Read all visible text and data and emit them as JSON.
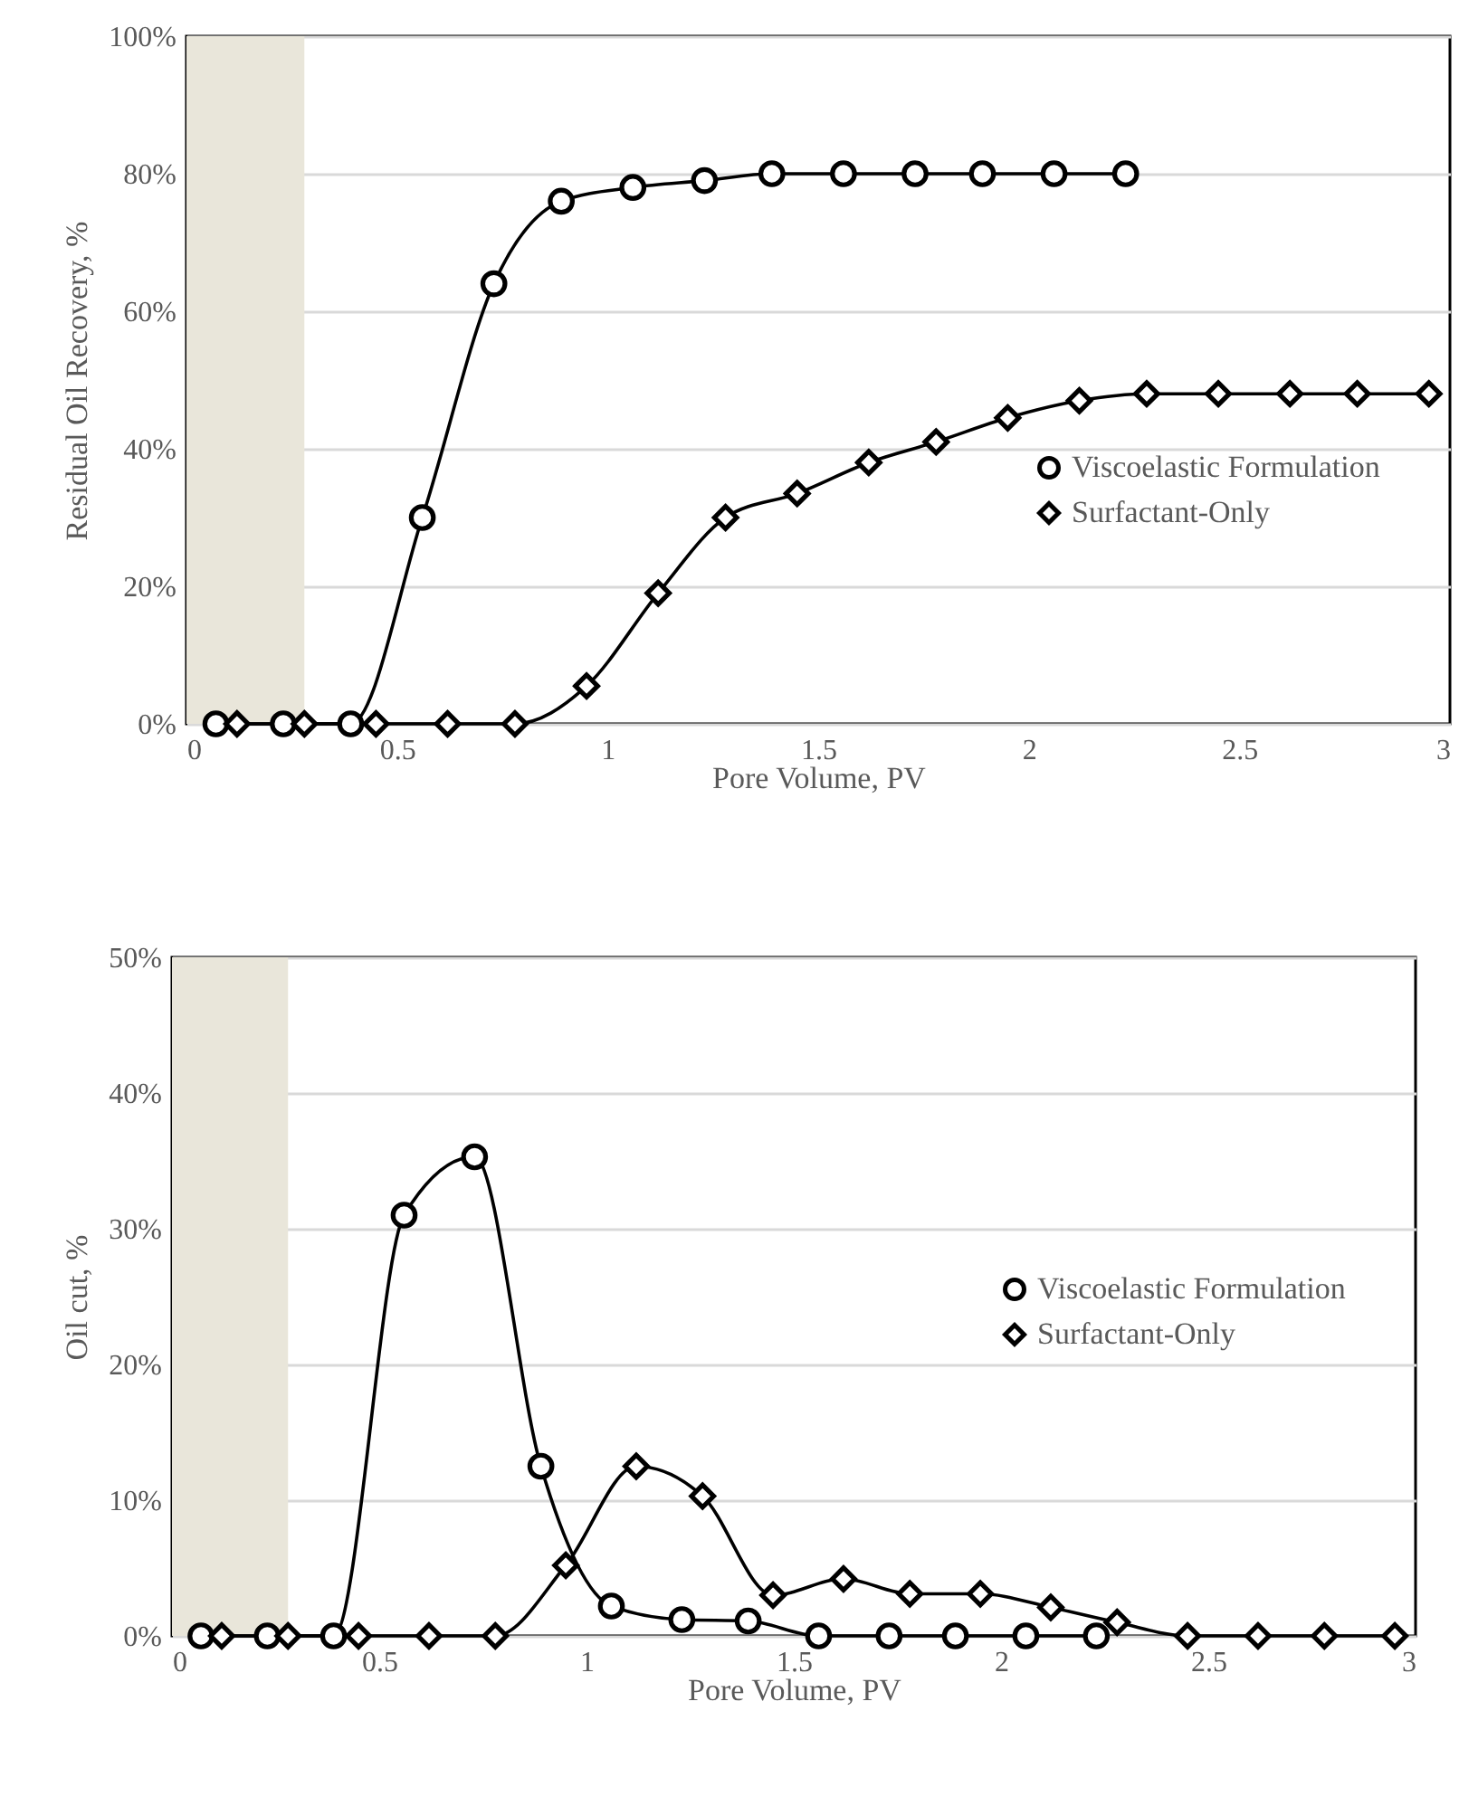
{
  "chart_data": [
    {
      "type": "line",
      "xlabel": "Pore Volume, PV",
      "ylabel": "Residual Oil Recovery, %",
      "xlim": [
        0,
        3
      ],
      "xticks": [
        0,
        0.5,
        1,
        1.5,
        2,
        2.5,
        3
      ],
      "ylim": [
        0,
        100
      ],
      "yticks": [
        {
          "value": 0,
          "label": "0%"
        },
        {
          "value": 20,
          "label": "20%"
        },
        {
          "value": 40,
          "label": "40%"
        },
        {
          "value": 60,
          "label": "60%"
        },
        {
          "value": 80,
          "label": "80%"
        },
        {
          "value": 100,
          "label": "100%"
        }
      ],
      "grid": "y",
      "legend": "bottom right",
      "bands": [
        {
          "axis": "x",
          "from": 0,
          "to": 0.28,
          "color": "#e9e6da"
        }
      ],
      "series": [
        {
          "name": "Viscoelastic Formulation",
          "color": "#000000",
          "marker": "circle",
          "x": [
            0.07,
            0.23,
            0.39,
            0.56,
            0.73,
            0.89,
            1.06,
            1.23,
            1.39,
            1.56,
            1.73,
            1.89,
            2.06,
            2.23
          ],
          "values": [
            0,
            0,
            0,
            30,
            64,
            76,
            78,
            79,
            80,
            80,
            80,
            80,
            80,
            80
          ]
        },
        {
          "name": "Surfactant-Only",
          "color": "#000000",
          "marker": "diamond",
          "x": [
            0.12,
            0.28,
            0.45,
            0.62,
            0.78,
            0.95,
            1.12,
            1.28,
            1.45,
            1.62,
            1.78,
            1.95,
            2.12,
            2.28,
            2.45,
            2.62,
            2.78,
            2.95
          ],
          "values": [
            0,
            0,
            0,
            0,
            0,
            5.5,
            19,
            30,
            33.5,
            38,
            41,
            44.5,
            47,
            48,
            48,
            48,
            48,
            48
          ]
        }
      ]
    },
    {
      "type": "line",
      "xlabel": "Pore Volume, PV",
      "ylabel": "Oil cut, %",
      "xlim": [
        0,
        3
      ],
      "xticks": [
        0,
        0.5,
        1,
        1.5,
        2,
        2.5,
        3
      ],
      "ylim": [
        0,
        50
      ],
      "yticks": [
        {
          "value": 0,
          "label": "0%"
        },
        {
          "value": 10,
          "label": "10%"
        },
        {
          "value": 20,
          "label": "20%"
        },
        {
          "value": 30,
          "label": "30%"
        },
        {
          "value": 40,
          "label": "40%"
        },
        {
          "value": 50,
          "label": "50%"
        }
      ],
      "grid": "y",
      "legend": "right",
      "bands": [
        {
          "axis": "x",
          "from": 0,
          "to": 0.28,
          "color": "#e9e6da"
        }
      ],
      "series": [
        {
          "name": "Viscoelastic Formulation",
          "color": "#000000",
          "marker": "circle",
          "x": [
            0.07,
            0.23,
            0.39,
            0.56,
            0.73,
            0.89,
            1.06,
            1.23,
            1.39,
            1.56,
            1.73,
            1.89,
            2.06,
            2.23
          ],
          "values": [
            0,
            0,
            0,
            31,
            35.3,
            12.5,
            2.2,
            1.2,
            1.1,
            0,
            0,
            0,
            0,
            0
          ]
        },
        {
          "name": "Surfactant-Only",
          "color": "#000000",
          "marker": "diamond",
          "x": [
            0.12,
            0.28,
            0.45,
            0.62,
            0.78,
            0.95,
            1.12,
            1.28,
            1.45,
            1.62,
            1.78,
            1.95,
            2.12,
            2.28,
            2.45,
            2.62,
            2.78,
            2.95
          ],
          "values": [
            0,
            0,
            0,
            0,
            0,
            5.2,
            12.5,
            10.3,
            3,
            4.2,
            3.1,
            3.1,
            2.1,
            1,
            0,
            0,
            0,
            0
          ]
        }
      ]
    }
  ]
}
